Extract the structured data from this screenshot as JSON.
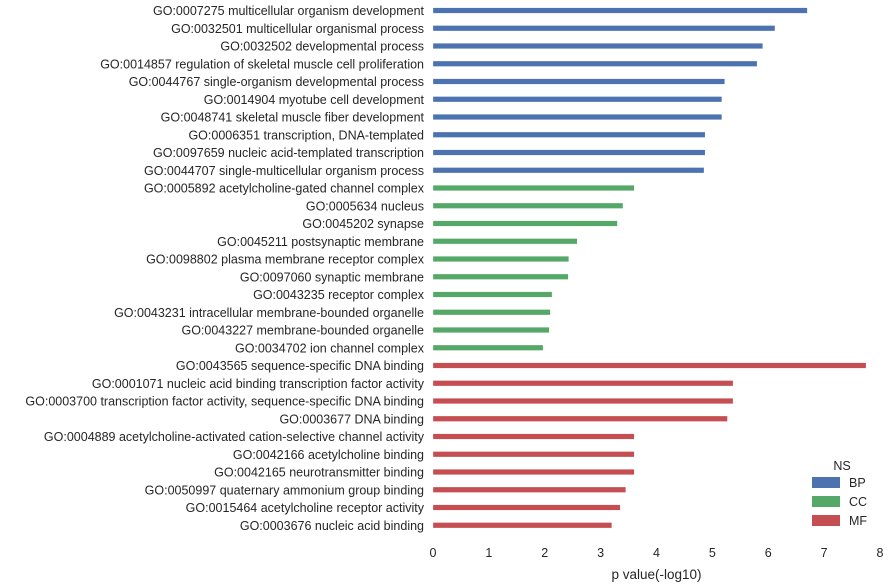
{
  "chart_data": {
    "type": "bar",
    "orientation": "horizontal",
    "xlabel": "p value(-log10)",
    "ylabel": "",
    "xlim": [
      0,
      8
    ],
    "xticks": [
      "0",
      "1",
      "2",
      "3",
      "4",
      "5",
      "6",
      "7",
      "8"
    ],
    "grid": false,
    "legend": {
      "title": "NS",
      "placement": "bottom-right",
      "entries": [
        {
          "name": "BP",
          "color": "#4c72b0"
        },
        {
          "name": "CC",
          "color": "#55a868"
        },
        {
          "name": "MF",
          "color": "#c44e52"
        }
      ]
    },
    "bars": [
      {
        "label": "GO:0007275 multicellular organism development",
        "value": 6.7,
        "ns": "BP"
      },
      {
        "label": "GO:0032501 multicellular organismal process",
        "value": 6.12,
        "ns": "BP"
      },
      {
        "label": "GO:0032502 developmental process",
        "value": 5.9,
        "ns": "BP"
      },
      {
        "label": "GO:0014857 regulation of skeletal muscle cell proliferation",
        "value": 5.8,
        "ns": "BP"
      },
      {
        "label": "GO:0044767 single-organism developmental process",
        "value": 5.22,
        "ns": "BP"
      },
      {
        "label": "GO:0014904 myotube cell development",
        "value": 5.17,
        "ns": "BP"
      },
      {
        "label": "GO:0048741 skeletal muscle fiber development",
        "value": 5.17,
        "ns": "BP"
      },
      {
        "label": "GO:0006351 transcription, DNA-templated",
        "value": 4.87,
        "ns": "BP"
      },
      {
        "label": "GO:0097659 nucleic acid-templated transcription",
        "value": 4.87,
        "ns": "BP"
      },
      {
        "label": "GO:0044707 single-multicellular organism process",
        "value": 4.85,
        "ns": "BP"
      },
      {
        "label": "GO:0005892 acetylcholine-gated channel complex",
        "value": 3.6,
        "ns": "CC"
      },
      {
        "label": "GO:0005634 nucleus",
        "value": 3.4,
        "ns": "CC"
      },
      {
        "label": "GO:0045202 synapse",
        "value": 3.3,
        "ns": "CC"
      },
      {
        "label": "GO:0045211 postsynaptic membrane",
        "value": 2.58,
        "ns": "CC"
      },
      {
        "label": "GO:0098802 plasma membrane receptor complex",
        "value": 2.43,
        "ns": "CC"
      },
      {
        "label": "GO:0097060 synaptic membrane",
        "value": 2.42,
        "ns": "CC"
      },
      {
        "label": "GO:0043235 receptor complex",
        "value": 2.13,
        "ns": "CC"
      },
      {
        "label": "GO:0043231 intracellular membrane-bounded organelle",
        "value": 2.1,
        "ns": "CC"
      },
      {
        "label": "GO:0043227 membrane-bounded organelle",
        "value": 2.08,
        "ns": "CC"
      },
      {
        "label": "GO:0034702 ion channel complex",
        "value": 1.97,
        "ns": "CC"
      },
      {
        "label": "GO:0043565 sequence-specific DNA binding",
        "value": 7.75,
        "ns": "MF"
      },
      {
        "label": "GO:0001071 nucleic acid binding transcription factor activity",
        "value": 5.37,
        "ns": "MF"
      },
      {
        "label": "GO:0003700 transcription factor activity, sequence-specific DNA binding",
        "value": 5.37,
        "ns": "MF"
      },
      {
        "label": "GO:0003677 DNA binding",
        "value": 5.27,
        "ns": "MF"
      },
      {
        "label": "GO:0004889 acetylcholine-activated cation-selective channel activity",
        "value": 3.6,
        "ns": "MF"
      },
      {
        "label": "GO:0042166 acetylcholine binding",
        "value": 3.6,
        "ns": "MF"
      },
      {
        "label": "GO:0042165 neurotransmitter binding",
        "value": 3.6,
        "ns": "MF"
      },
      {
        "label": "GO:0050997 quaternary ammonium group binding",
        "value": 3.45,
        "ns": "MF"
      },
      {
        "label": "GO:0015464 acetylcholine receptor activity",
        "value": 3.35,
        "ns": "MF"
      },
      {
        "label": "GO:0003676 nucleic acid binding",
        "value": 3.2,
        "ns": "MF"
      }
    ]
  }
}
